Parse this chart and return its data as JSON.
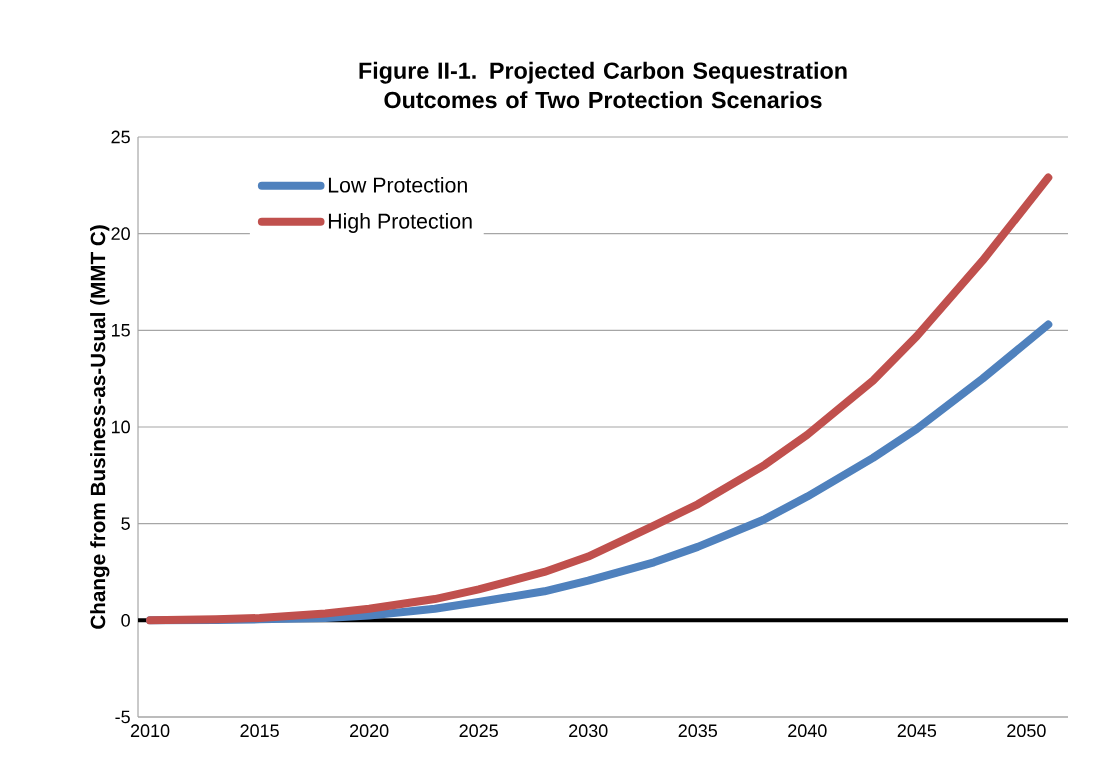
{
  "chart_data": {
    "type": "line",
    "title": "Figure II-1. Projected Carbon Sequestration Outcomes of Two Protection Scenarios",
    "ylabel": "Change from Business-as-Usual (MMT C)",
    "xlim": [
      2009.45,
      2051.9
    ],
    "xticks": [
      2010,
      2015,
      2020,
      2025,
      2030,
      2035,
      2040,
      2045,
      2050
    ],
    "ylim": [
      -5,
      25
    ],
    "yticks": [
      -5,
      0,
      5,
      10,
      15,
      20,
      25
    ],
    "grid": "y",
    "legend": "top left",
    "marker": "none",
    "line_style": "solid",
    "ref_lines": [
      {
        "axis": "y",
        "value": 0,
        "color": "#000000"
      }
    ],
    "x": [
      2010,
      2013,
      2015,
      2018,
      2020,
      2023,
      2025,
      2028,
      2030,
      2033,
      2035,
      2038,
      2040,
      2043,
      2045,
      2048,
      2051
    ],
    "series": [
      {
        "name": "Low Protection",
        "color": "#4f81bd",
        "values": [
          0,
          0.02,
          0.05,
          0.12,
          0.25,
          0.6,
          0.95,
          1.5,
          2.05,
          3.0,
          3.8,
          5.2,
          6.4,
          8.4,
          9.9,
          12.5,
          15.3
        ]
      },
      {
        "name": "High Protection",
        "color": "#c0504d",
        "values": [
          0,
          0.05,
          0.12,
          0.35,
          0.6,
          1.1,
          1.6,
          2.5,
          3.3,
          4.9,
          6.0,
          8.0,
          9.6,
          12.4,
          14.7,
          18.6,
          22.9
        ]
      }
    ]
  }
}
